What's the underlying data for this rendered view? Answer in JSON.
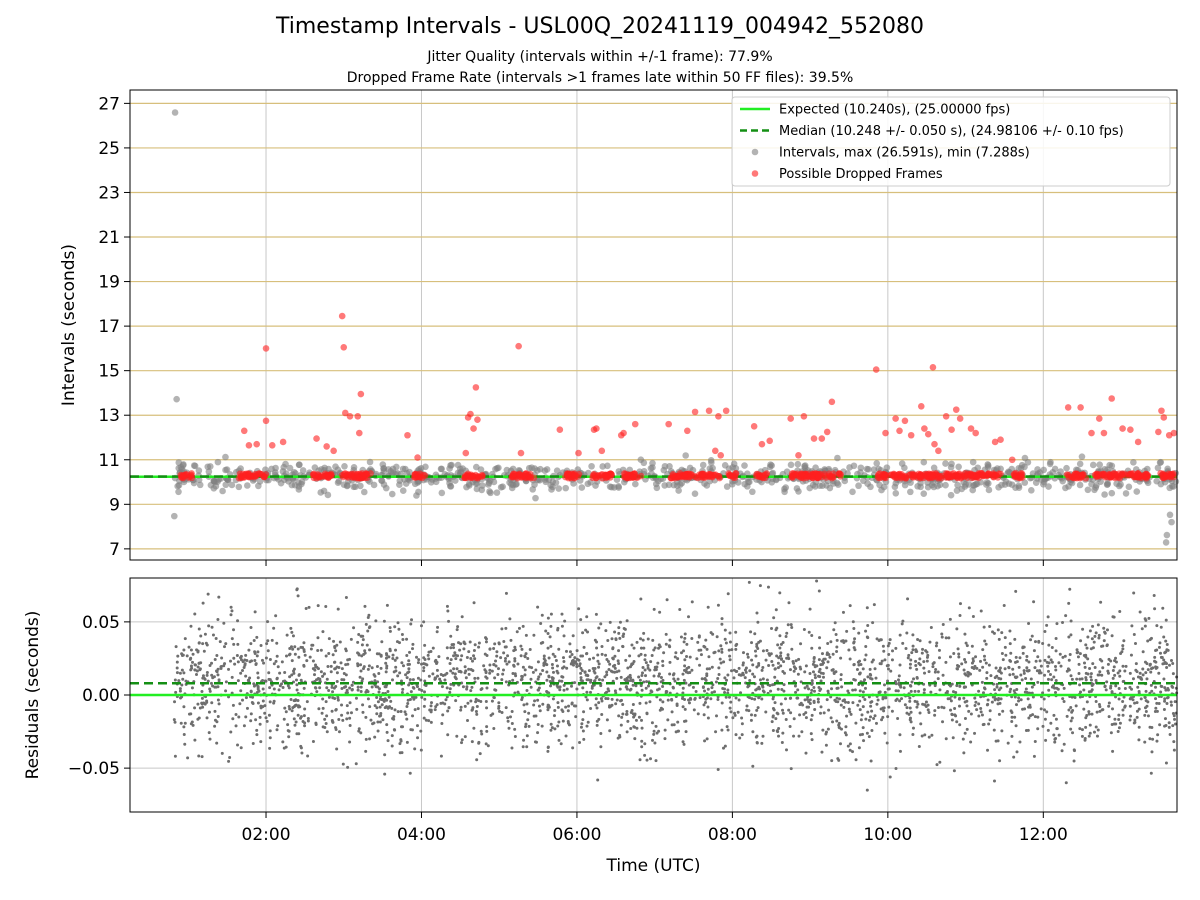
{
  "title": "Timestamp Intervals - USL00Q_20241119_004942_552080",
  "subtitle_1": "Jitter Quality (intervals within +/-1 frame): 77.9%",
  "subtitle_2": "Dropped Frame Rate (intervals >1 frames late within 50 FF files): 39.5%",
  "colors": {
    "expected": "#22ee22",
    "median": "#148f14",
    "intervals": "#808080",
    "dropped": "#ff2020",
    "hgrid": "#d7bf7c",
    "vgrid": "#c8c8c8"
  },
  "chart_data": [
    {
      "type": "scatter",
      "title": "",
      "xlabel": "",
      "ylabel": "Intervals (seconds)",
      "xlim_hours": [
        0.25,
        13.72
      ],
      "ylim": [
        6.5,
        27.6
      ],
      "yticks": [
        "7",
        "9",
        "11",
        "13",
        "15",
        "17",
        "19",
        "21",
        "23",
        "25",
        "27"
      ],
      "grid": true,
      "legend_position": "upper right",
      "legend": [
        {
          "kind": "line-solid",
          "label": "Expected (10.240s), (25.00000 fps)"
        },
        {
          "kind": "line-dashed",
          "label": "Median (10.248 +/- 0.050 s), (24.98106 +/- 0.10 fps)"
        },
        {
          "kind": "dot-gray",
          "label": "Intervals, max (26.591s), min (7.288s)"
        },
        {
          "kind": "dot-red",
          "label": "Possible Dropped Frames"
        }
      ],
      "expected_value": 10.24,
      "median_value": 10.248,
      "series": [
        {
          "name": "Intervals, max (26.591s), min (7.288s)",
          "max": 26.591,
          "min": 7.288,
          "notable_points": [
            [
              0.83,
              26.59
            ],
            [
              0.85,
              13.72
            ],
            [
              0.82,
              8.47
            ],
            [
              13.58,
              7.29
            ],
            [
              13.59,
              7.62
            ],
            [
              13.63,
              8.53
            ],
            [
              13.65,
              8.2
            ]
          ]
        },
        {
          "name": "Possible Dropped Frames",
          "notable_points": [
            [
              1.72,
              12.3
            ],
            [
              1.78,
              11.65
            ],
            [
              1.88,
              11.7
            ],
            [
              2.0,
              16.0
            ],
            [
              2.0,
              12.75
            ],
            [
              2.08,
              11.65
            ],
            [
              2.22,
              11.8
            ],
            [
              2.65,
              11.95
            ],
            [
              2.78,
              11.6
            ],
            [
              2.87,
              11.4
            ],
            [
              2.98,
              17.45
            ],
            [
              3.0,
              16.05
            ],
            [
              3.02,
              13.1
            ],
            [
              3.08,
              12.95
            ],
            [
              3.18,
              12.95
            ],
            [
              3.2,
              12.2
            ],
            [
              3.22,
              13.95
            ],
            [
              3.82,
              12.1
            ],
            [
              3.95,
              11.1
            ],
            [
              4.57,
              11.3
            ],
            [
              4.6,
              12.9
            ],
            [
              4.63,
              13.05
            ],
            [
              4.67,
              12.4
            ],
            [
              4.7,
              14.25
            ],
            [
              4.72,
              12.8
            ],
            [
              5.25,
              16.1
            ],
            [
              5.28,
              11.3
            ],
            [
              5.78,
              12.35
            ],
            [
              6.02,
              11.3
            ],
            [
              6.22,
              12.35
            ],
            [
              6.25,
              12.4
            ],
            [
              6.32,
              11.4
            ],
            [
              6.57,
              12.1
            ],
            [
              6.6,
              12.2
            ],
            [
              6.75,
              12.6
            ],
            [
              7.18,
              12.6
            ],
            [
              7.42,
              12.3
            ],
            [
              7.52,
              13.15
            ],
            [
              7.7,
              13.2
            ],
            [
              7.78,
              11.4
            ],
            [
              7.82,
              12.95
            ],
            [
              7.85,
              11.2
            ],
            [
              7.92,
              13.2
            ],
            [
              8.28,
              12.5
            ],
            [
              8.38,
              11.7
            ],
            [
              8.48,
              11.85
            ],
            [
              8.75,
              12.85
            ],
            [
              8.85,
              11.2
            ],
            [
              8.92,
              12.95
            ],
            [
              9.05,
              11.95
            ],
            [
              9.15,
              11.95
            ],
            [
              9.22,
              12.25
            ],
            [
              9.28,
              13.6
            ],
            [
              9.85,
              15.05
            ],
            [
              9.97,
              12.2
            ],
            [
              10.1,
              12.85
            ],
            [
              10.15,
              12.3
            ],
            [
              10.22,
              12.75
            ],
            [
              10.3,
              12.1
            ],
            [
              10.43,
              13.4
            ],
            [
              10.47,
              12.4
            ],
            [
              10.52,
              12.15
            ],
            [
              10.58,
              15.15
            ],
            [
              10.6,
              11.7
            ],
            [
              10.65,
              11.4
            ],
            [
              10.75,
              12.95
            ],
            [
              10.82,
              12.35
            ],
            [
              10.88,
              13.25
            ],
            [
              10.93,
              12.85
            ],
            [
              11.07,
              12.4
            ],
            [
              11.13,
              12.2
            ],
            [
              11.38,
              11.8
            ],
            [
              11.45,
              11.9
            ],
            [
              11.6,
              11.0
            ],
            [
              12.32,
              13.35
            ],
            [
              12.48,
              13.35
            ],
            [
              12.62,
              12.2
            ],
            [
              12.72,
              12.85
            ],
            [
              12.78,
              12.2
            ],
            [
              12.88,
              13.75
            ],
            [
              13.02,
              12.4
            ],
            [
              13.12,
              12.35
            ],
            [
              13.22,
              11.8
            ],
            [
              13.48,
              12.25
            ],
            [
              13.52,
              13.2
            ],
            [
              13.55,
              12.9
            ],
            [
              13.62,
              12.1
            ],
            [
              13.68,
              12.2
            ]
          ]
        }
      ]
    },
    {
      "type": "scatter",
      "title": "",
      "xlabel": "Time (UTC)",
      "ylabel": "Residuals (seconds)",
      "xlim_hours": [
        0.25,
        13.72
      ],
      "ylim": [
        -0.08,
        0.08
      ],
      "yticks": [
        "−0.05",
        "0.00",
        "0.05"
      ],
      "xticks": [
        "02:00",
        "04:00",
        "06:00",
        "08:00",
        "10:00",
        "12:00"
      ],
      "grid": true,
      "expected_value": 0.0,
      "median_value": 0.008,
      "series": [
        {
          "name": "",
          "range": [
            -0.08,
            0.075
          ],
          "spread_sd": 0.022
        }
      ]
    }
  ]
}
